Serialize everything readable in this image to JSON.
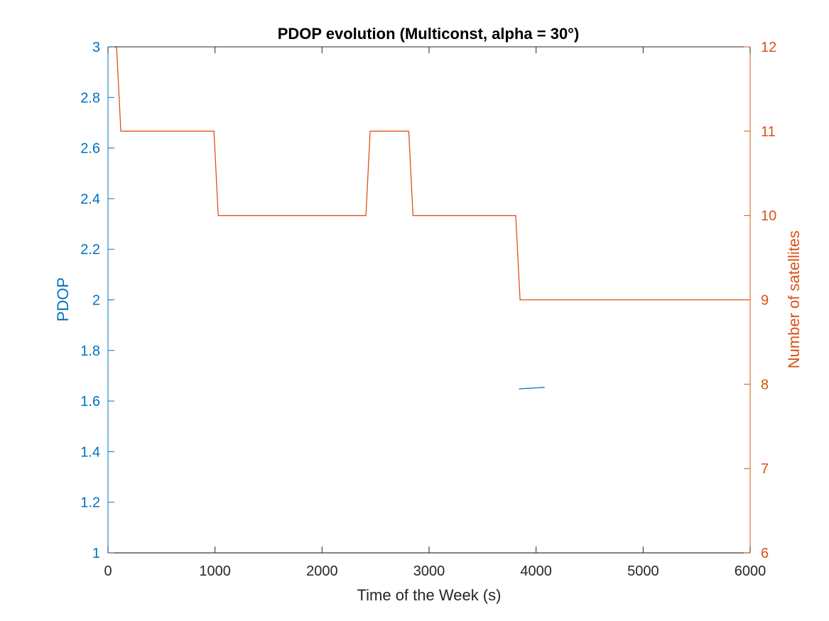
{
  "chart_data": {
    "type": "line",
    "title": "PDOP evolution (Multiconst, alpha = 30°)",
    "xlabel": "Time of the Week (s)",
    "ylabel_left": "PDOP",
    "ylabel_right": "Number of satellites",
    "xlim": [
      0,
      6000
    ],
    "ylim_left": [
      1,
      3
    ],
    "ylim_right": [
      6,
      12
    ],
    "x_ticks": [
      "0",
      "1000",
      "2000",
      "3000",
      "4000",
      "5000",
      "6000"
    ],
    "y_left_ticks": [
      "1",
      "1.2",
      "1.4",
      "1.6",
      "1.8",
      "2",
      "2.2",
      "2.4",
      "2.6",
      "2.8",
      "3"
    ],
    "y_right_ticks": [
      "6",
      "7",
      "8",
      "9",
      "10",
      "11",
      "12"
    ],
    "grid": false,
    "colors": {
      "left": "#0072BD",
      "right": "#D95319",
      "axis": "#262626"
    },
    "series": [
      {
        "axis": "left",
        "x": [
          3840,
          4080
        ],
        "values": [
          1.648,
          1.654
        ]
      },
      {
        "axis": "right",
        "x": [
          0,
          80,
          120,
          990,
          1030,
          2410,
          2450,
          2810,
          2850,
          3810,
          3850,
          6000
        ],
        "values": [
          12,
          12,
          11,
          11,
          10,
          10,
          11,
          11,
          10,
          10,
          9,
          9
        ]
      },
      {
        "axis": "right",
        "x": [
          0,
          6000
        ],
        "values": [
          6,
          6
        ]
      }
    ]
  }
}
